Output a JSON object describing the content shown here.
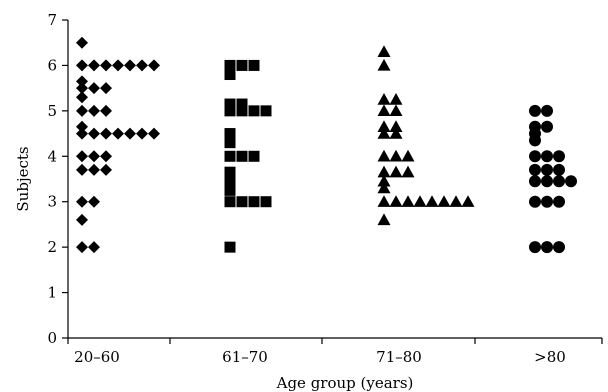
{
  "chart_data": {
    "type": "scatter",
    "title": "",
    "xlabel": "Age group (years)",
    "ylabel": "Subjects",
    "categories": [
      "20–60",
      "61–70",
      "71–80",
      ">80"
    ],
    "ylim": [
      0,
      7
    ],
    "yticks": [
      "0",
      "1",
      "2",
      "3",
      "4",
      "5",
      "6",
      "7"
    ],
    "grid": false,
    "legend": "none",
    "series": [
      {
        "category": "20–60",
        "marker": "diamond",
        "points": [
          [
            0.0,
            6.5
          ],
          [
            0.0,
            6.0
          ],
          [
            0.1,
            6.0
          ],
          [
            0.2,
            6.0
          ],
          [
            0.3,
            6.0
          ],
          [
            0.4,
            6.0
          ],
          [
            0.5,
            6.0
          ],
          [
            0.6,
            6.0
          ],
          [
            0.0,
            5.65
          ],
          [
            0.0,
            5.5
          ],
          [
            0.0,
            5.3
          ],
          [
            0.1,
            5.5
          ],
          [
            0.2,
            5.5
          ],
          [
            0.0,
            5.0
          ],
          [
            0.1,
            5.0
          ],
          [
            0.2,
            5.0
          ],
          [
            0.0,
            4.65
          ],
          [
            0.0,
            4.5
          ],
          [
            0.1,
            4.5
          ],
          [
            0.2,
            4.5
          ],
          [
            0.3,
            4.5
          ],
          [
            0.4,
            4.5
          ],
          [
            0.5,
            4.5
          ],
          [
            0.6,
            4.5
          ],
          [
            0.0,
            4.0
          ],
          [
            0.1,
            4.0
          ],
          [
            0.2,
            4.0
          ],
          [
            0.0,
            3.7
          ],
          [
            0.1,
            3.7
          ],
          [
            0.2,
            3.7
          ],
          [
            0.0,
            3.0
          ],
          [
            0.1,
            3.0
          ],
          [
            0.0,
            2.6
          ],
          [
            0.0,
            2.0
          ],
          [
            0.1,
            2.0
          ]
        ]
      },
      {
        "category": "61–70",
        "marker": "square",
        "points": [
          [
            0.0,
            6.0
          ],
          [
            0.1,
            6.0
          ],
          [
            0.2,
            6.0
          ],
          [
            0.0,
            5.8
          ],
          [
            0.0,
            5.15
          ],
          [
            0.1,
            5.15
          ],
          [
            0.0,
            5.0
          ],
          [
            0.1,
            5.0
          ],
          [
            0.2,
            5.0
          ],
          [
            0.3,
            5.0
          ],
          [
            0.0,
            4.5
          ],
          [
            0.0,
            4.3
          ],
          [
            0.0,
            4.0
          ],
          [
            0.1,
            4.0
          ],
          [
            0.2,
            4.0
          ],
          [
            0.0,
            3.65
          ],
          [
            0.0,
            3.45
          ],
          [
            0.0,
            3.25
          ],
          [
            0.0,
            3.0
          ],
          [
            0.1,
            3.0
          ],
          [
            0.2,
            3.0
          ],
          [
            0.3,
            3.0
          ],
          [
            0.0,
            2.0
          ]
        ]
      },
      {
        "category": "71–80",
        "marker": "triangle",
        "points": [
          [
            0.0,
            6.3
          ],
          [
            0.0,
            6.0
          ],
          [
            0.0,
            5.25
          ],
          [
            0.1,
            5.25
          ],
          [
            0.0,
            5.0
          ],
          [
            0.1,
            5.0
          ],
          [
            0.0,
            4.65
          ],
          [
            0.1,
            4.65
          ],
          [
            0.0,
            4.5
          ],
          [
            0.1,
            4.5
          ],
          [
            0.0,
            4.0
          ],
          [
            0.1,
            4.0
          ],
          [
            0.2,
            4.0
          ],
          [
            0.0,
            3.65
          ],
          [
            0.1,
            3.65
          ],
          [
            0.2,
            3.65
          ],
          [
            0.0,
            3.45
          ],
          [
            0.0,
            3.3
          ],
          [
            0.0,
            3.0
          ],
          [
            0.1,
            3.0
          ],
          [
            0.2,
            3.0
          ],
          [
            0.3,
            3.0
          ],
          [
            0.4,
            3.0
          ],
          [
            0.5,
            3.0
          ],
          [
            0.6,
            3.0
          ],
          [
            0.7,
            3.0
          ],
          [
            0.0,
            2.6
          ]
        ]
      },
      {
        "category": ">80",
        "marker": "circle",
        "points": [
          [
            0.0,
            5.0
          ],
          [
            0.1,
            5.0
          ],
          [
            0.0,
            4.65
          ],
          [
            0.1,
            4.65
          ],
          [
            0.0,
            4.5
          ],
          [
            0.0,
            4.35
          ],
          [
            0.0,
            4.0
          ],
          [
            0.1,
            4.0
          ],
          [
            0.2,
            4.0
          ],
          [
            0.0,
            3.7
          ],
          [
            0.1,
            3.7
          ],
          [
            0.2,
            3.7
          ],
          [
            0.0,
            3.45
          ],
          [
            0.1,
            3.45
          ],
          [
            0.2,
            3.45
          ],
          [
            0.3,
            3.45
          ],
          [
            0.0,
            3.0
          ],
          [
            0.1,
            3.0
          ],
          [
            0.2,
            3.0
          ],
          [
            0.0,
            2.0
          ],
          [
            0.1,
            2.0
          ],
          [
            0.2,
            2.0
          ]
        ]
      }
    ]
  }
}
